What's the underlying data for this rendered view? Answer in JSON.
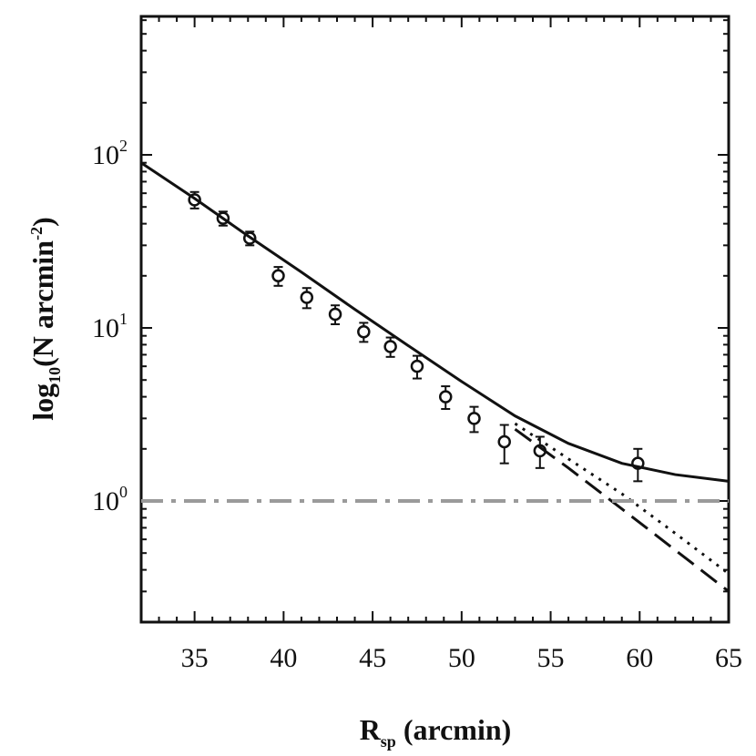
{
  "chart_data": {
    "type": "line",
    "xlabel": "R",
    "xlabel_sub": "sp",
    "xlabel_unit": " (arcmin)",
    "ylabel_main": "log",
    "ylabel_sub": "10",
    "ylabel_rest": "(N arcmin",
    "ylabel_sup": "-2",
    "ylabel_end": ")",
    "xlim": [
      32,
      65
    ],
    "ylim_log10": [
      -0.7,
      2.8
    ],
    "y_scale": "log",
    "grid": false,
    "x_ticks": [
      35,
      40,
      45,
      50,
      55,
      60,
      65
    ],
    "x_tick_labels": [
      "35",
      "40",
      "45",
      "50",
      "55",
      "60",
      "65"
    ],
    "y_ticks": [
      {
        "base": "10",
        "exp": "0",
        "value": 1
      },
      {
        "base": "10",
        "exp": "1",
        "value": 10
      },
      {
        "base": "10",
        "exp": "2",
        "value": 100
      }
    ],
    "series": [
      {
        "style": "points-with-errorbars",
        "x": [
          35.0,
          36.6,
          38.1,
          39.7,
          41.3,
          42.9,
          44.5,
          46.0,
          47.5,
          49.1,
          50.7,
          52.4,
          54.4,
          59.9
        ],
        "y": [
          55,
          43,
          33,
          20,
          15,
          12,
          9.5,
          7.8,
          6.0,
          4.0,
          3.0,
          2.2,
          1.95,
          1.65
        ],
        "yerr_low": [
          6,
          4,
          3,
          2.5,
          2,
          1.5,
          1.2,
          1.0,
          0.9,
          0.6,
          0.5,
          0.55,
          0.4,
          0.35
        ],
        "yerr_high": [
          6,
          4,
          3,
          2.5,
          2,
          1.5,
          1.2,
          1.0,
          0.9,
          0.6,
          0.5,
          0.55,
          0.4,
          0.35
        ]
      },
      {
        "style": "solid",
        "x": [
          32,
          35,
          38,
          41,
          44,
          47,
          50,
          53,
          56,
          59,
          62,
          65
        ],
        "y": [
          90,
          56,
          34,
          21,
          12.8,
          7.9,
          4.9,
          3.1,
          2.15,
          1.65,
          1.42,
          1.3
        ]
      },
      {
        "style": "dotted",
        "x": [
          53,
          56,
          59,
          62,
          65
        ],
        "y": [
          2.8,
          1.75,
          1.1,
          0.65,
          0.38
        ]
      },
      {
        "style": "dashed",
        "x": [
          53,
          56,
          59,
          62,
          65
        ],
        "y": [
          2.6,
          1.55,
          0.9,
          0.52,
          0.3
        ]
      },
      {
        "style": "dash-dot",
        "color": "#9a9a9a",
        "x": [
          32,
          65
        ],
        "y": [
          1,
          1
        ]
      }
    ]
  }
}
